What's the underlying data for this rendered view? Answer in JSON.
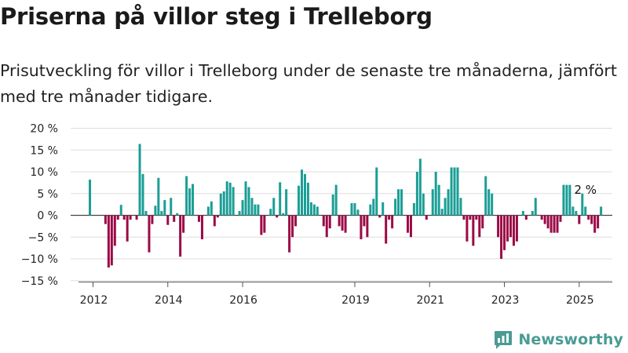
{
  "title": "Priserna på villor steg i Trelleborg",
  "subtitle": "Prisutveckling för villor i Trelleborg under de senaste tre månaderna, jämfört med tre månader tidigare.",
  "brand": {
    "name": "Newsworthy",
    "icon": "newsworthy-logo-icon"
  },
  "colors": {
    "positive": "#1b9e96",
    "negative": "#9b0a46",
    "grid": "#dddddd",
    "axis": "#555555"
  },
  "chart_data": {
    "type": "bar",
    "ylim": [
      -15,
      20
    ],
    "y_ticks": [
      20,
      15,
      10,
      5,
      0,
      -5,
      -10,
      -15
    ],
    "y_tick_labels": [
      "20 %",
      "15 %",
      "10 %",
      "5 %",
      "0 %",
      "−5 %",
      "−10 %",
      "−15 %"
    ],
    "x_ticks": [
      {
        "label": "2012",
        "date": "2012-01"
      },
      {
        "label": "2014",
        "date": "2014-01"
      },
      {
        "label": "2016",
        "date": "2016-01"
      },
      {
        "label": "2019",
        "date": "2019-01"
      },
      {
        "label": "2021",
        "date": "2021-01"
      },
      {
        "label": "2023",
        "date": "2023-01"
      },
      {
        "label": "2025",
        "date": "2025-01"
      }
    ],
    "annotation": {
      "label": "2 %",
      "date": "2025-03"
    },
    "start_date": "2011-12",
    "values": [
      8.2,
      0,
      0,
      0,
      0,
      -2,
      -12,
      -11.5,
      -7,
      -1,
      2.4,
      -1,
      -6,
      -1,
      0,
      -1,
      16.4,
      9.5,
      1,
      -8.5,
      -2,
      2.2,
      8.6,
      1,
      3.5,
      -2.2,
      4,
      -1.5,
      0.5,
      -9.5,
      -4,
      9,
      6.2,
      7.2,
      0,
      -1.5,
      -5.5,
      0,
      2,
      3.2,
      -2.5,
      -0.5,
      5,
      5.5,
      7.8,
      7.5,
      6.5,
      0,
      1,
      3.5,
      7.8,
      6.5,
      4,
      2.5,
      2.5,
      -4.5,
      -4,
      0,
      1.5,
      4,
      -0.5,
      7.6,
      0.5,
      6,
      -8.5,
      -5,
      -2.5,
      6.8,
      10.5,
      9.5,
      7.5,
      3,
      2.5,
      2,
      0,
      -2.5,
      -5,
      -3,
      4.8,
      7,
      -2.5,
      -3.5,
      -4,
      0,
      2.8,
      2.8,
      1.3,
      -5.5,
      -2.5,
      -5,
      2.5,
      3.8,
      11,
      -0.5,
      3,
      -6.5,
      -1,
      -3,
      3.8,
      6,
      6,
      0,
      -4,
      -5,
      2.8,
      10,
      13,
      5,
      -1,
      0,
      6,
      10,
      7,
      1.5,
      4,
      6,
      11,
      11,
      11,
      4,
      -1,
      -6,
      -1,
      -7,
      -1,
      -5,
      -3,
      9,
      6,
      5,
      0,
      -5,
      -10,
      -8,
      -6,
      -5,
      -7,
      -6,
      0,
      1,
      -1,
      0,
      1,
      4,
      0,
      -1,
      -2,
      -3,
      -4,
      -4,
      -4,
      -1.5,
      7,
      7,
      7,
      2,
      1,
      -2,
      5,
      2,
      -1,
      -2,
      -4,
      -3,
      2
    ]
  }
}
